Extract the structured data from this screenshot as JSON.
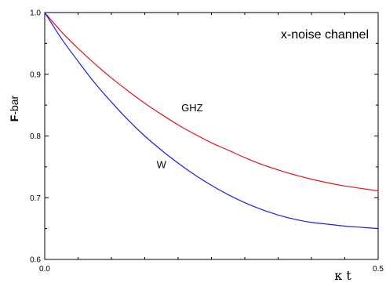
{
  "chart_data": {
    "type": "line",
    "title": "x-noise channel",
    "xlabel": "κ t",
    "ylabel": "F-bar",
    "ylabel_bold_part": "F",
    "ylabel_rest": "-bar",
    "xlim": [
      0.0,
      0.5
    ],
    "ylim": [
      0.6,
      1.0
    ],
    "grid": false,
    "legend": "none",
    "x_tick_labels": [
      "0.0",
      "0.5"
    ],
    "y_tick_labels": [
      "0.6",
      "0.7",
      "0.8",
      "0.9",
      "1.0"
    ],
    "series": [
      {
        "name": "GHZ",
        "color": "#e8141a",
        "x": [
          0.0,
          0.025,
          0.05,
          0.075,
          0.1,
          0.125,
          0.15,
          0.175,
          0.2,
          0.225,
          0.25,
          0.275,
          0.3,
          0.325,
          0.35,
          0.375,
          0.4,
          0.425,
          0.45,
          0.475,
          0.5
        ],
        "y": [
          1.0,
          0.969,
          0.942,
          0.917,
          0.894,
          0.873,
          0.853,
          0.835,
          0.818,
          0.803,
          0.789,
          0.777,
          0.765,
          0.754,
          0.745,
          0.737,
          0.73,
          0.724,
          0.719,
          0.715,
          0.711
        ]
      },
      {
        "name": "W",
        "color": "#1e1eeb",
        "x": [
          0.0,
          0.025,
          0.05,
          0.075,
          0.1,
          0.125,
          0.15,
          0.175,
          0.2,
          0.225,
          0.25,
          0.275,
          0.3,
          0.325,
          0.35,
          0.375,
          0.4,
          0.425,
          0.45,
          0.475,
          0.5
        ],
        "y": [
          1.0,
          0.958,
          0.921,
          0.886,
          0.855,
          0.826,
          0.8,
          0.777,
          0.756,
          0.737,
          0.72,
          0.705,
          0.692,
          0.681,
          0.672,
          0.665,
          0.66,
          0.657,
          0.654,
          0.652,
          0.65
        ]
      }
    ],
    "annotations": [
      {
        "text": "GHZ",
        "x": 0.221,
        "y": 0.84
      },
      {
        "text": "W",
        "x": 0.175,
        "y": 0.748
      }
    ]
  }
}
